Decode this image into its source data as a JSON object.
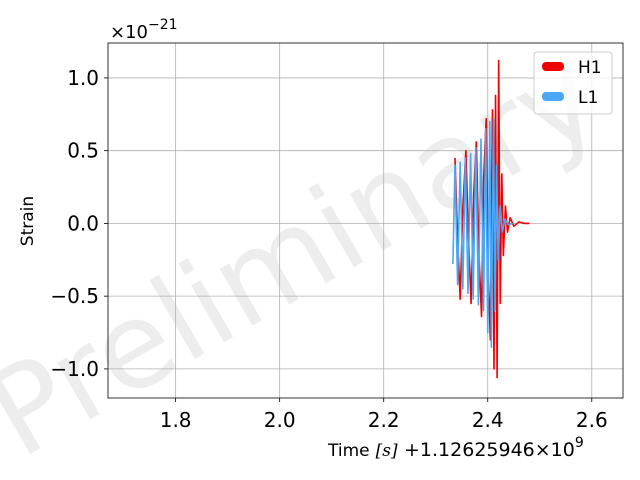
{
  "chart_data": {
    "type": "line",
    "xlabel_text": "Time",
    "xlabel_unit": "[s]",
    "x_offset_label": "+1.12625946×10",
    "x_offset_exp": "9",
    "ylabel": "Strain",
    "y_multiplier_base": "×10",
    "y_multiplier_exp": "−21",
    "xlim": [
      1.67,
      2.66
    ],
    "ylim": [
      -1.2,
      1.24
    ],
    "x_ticks": [
      1.8,
      2.0,
      2.2,
      2.4,
      2.6
    ],
    "x_tick_labels": [
      "1.8",
      "2.0",
      "2.2",
      "2.4",
      "2.6"
    ],
    "y_ticks": [
      1.0,
      0.5,
      0.0,
      -0.5,
      -1.0
    ],
    "y_tick_labels": [
      "1.0",
      "0.5",
      "0.0",
      "−0.5",
      "−1.0"
    ],
    "grid": true,
    "legend_position": "top-right",
    "watermark": "Preliminary",
    "series": [
      {
        "name": "H1",
        "color": "#ee0000",
        "x": [
          2.337,
          2.342,
          2.347,
          2.352,
          2.358,
          2.363,
          2.368,
          2.373,
          2.378,
          2.383,
          2.388,
          2.392,
          2.397,
          2.401,
          2.405,
          2.409,
          2.412,
          2.415,
          2.418,
          2.421,
          2.424,
          2.427,
          2.43,
          2.434,
          2.438,
          2.443,
          2.45,
          2.46,
          2.47,
          2.48
        ],
        "y": [
          0.45,
          -0.1,
          -0.52,
          0.1,
          0.5,
          -0.1,
          -0.55,
          0.2,
          0.56,
          -0.2,
          -0.64,
          0.3,
          0.72,
          -0.35,
          -0.8,
          0.78,
          -1.0,
          0.88,
          -1.06,
          1.12,
          -0.55,
          0.34,
          -0.22,
          0.12,
          -0.06,
          0.04,
          -0.02,
          0.01,
          0.0,
          0.0
        ]
      },
      {
        "name": "L1",
        "color": "#4ba6f4",
        "x": [
          2.333,
          2.337,
          2.342,
          2.347,
          2.352,
          2.357,
          2.362,
          2.367,
          2.372,
          2.377,
          2.382,
          2.387,
          2.392,
          2.396,
          2.4,
          2.404,
          2.407,
          2.411,
          2.414,
          2.417,
          2.42,
          2.424,
          2.428,
          2.433,
          2.44,
          2.448
        ],
        "y": [
          -0.28,
          0.4,
          -0.42,
          0.42,
          -0.45,
          0.45,
          -0.48,
          0.48,
          -0.52,
          0.52,
          -0.56,
          0.58,
          -0.6,
          0.65,
          -0.75,
          0.7,
          -0.85,
          0.72,
          -0.6,
          0.4,
          -0.25,
          0.12,
          -0.06,
          0.03,
          -0.01,
          0.0
        ]
      }
    ]
  }
}
